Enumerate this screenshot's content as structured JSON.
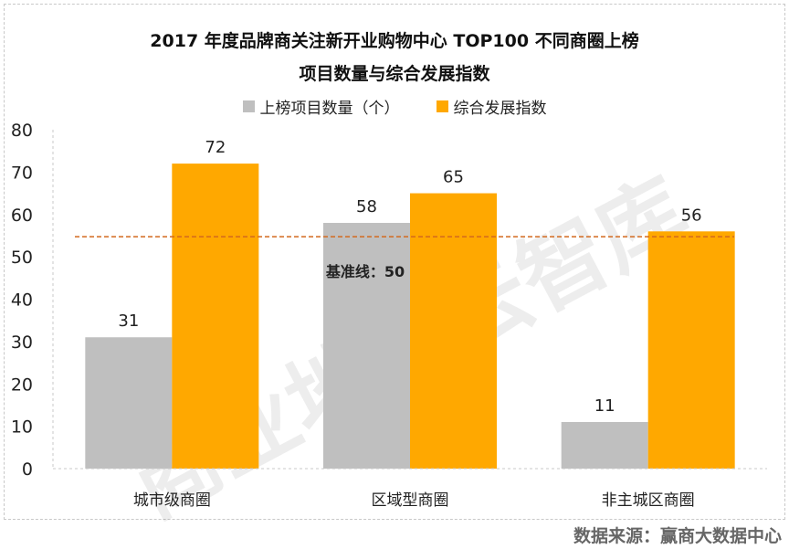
{
  "chart_data": {
    "type": "bar",
    "title": "2017 年度品牌商关注新开业购物中心 TOP100 不同商圈上榜",
    "subtitle": "项目数量与综合发展指数",
    "categories": [
      "城市级商圈",
      "区域型商圈",
      "非主城区商圈"
    ],
    "series": [
      {
        "name": "上榜项目数量（个）",
        "values": [
          31,
          58,
          11
        ],
        "color": "#bfbfbf"
      },
      {
        "name": "综合发展指数",
        "values": [
          72,
          65,
          56
        ],
        "color": "#ffa800"
      }
    ],
    "ylim": [
      0,
      80
    ],
    "yticks": [
      0,
      10,
      20,
      30,
      40,
      50,
      60,
      70,
      80
    ],
    "baseline": {
      "value": 50,
      "label": "基准线：50",
      "color": "#d2691e"
    },
    "grid": false,
    "legend": "top"
  },
  "watermark": "商业地产云智库",
  "source": "数据来源：赢商大数据中心"
}
